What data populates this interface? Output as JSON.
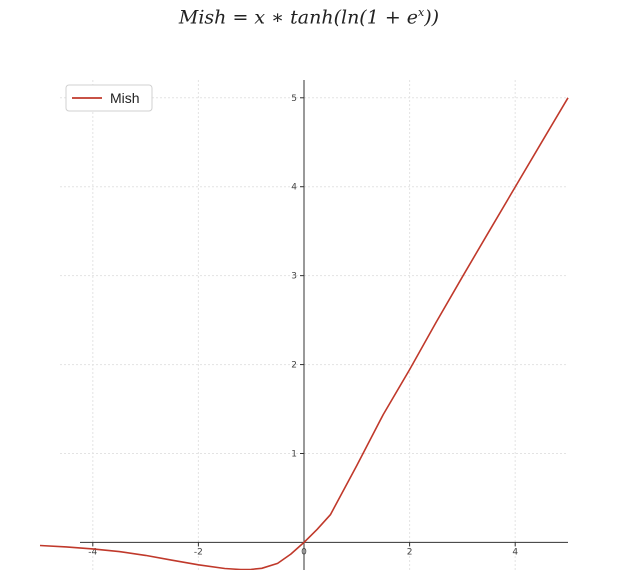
{
  "formula": {
    "lhs": "Mish",
    "rhs_prefix": "= x ∗ tanh(ln(1 + e",
    "exponent": "x",
    "rhs_suffix": "))"
  },
  "chart_data": {
    "type": "line",
    "title": "",
    "xlabel": "",
    "ylabel": "",
    "xlim": [
      -5,
      5
    ],
    "ylim": [
      -0.31,
      5.2
    ],
    "x_ticks": [
      -4,
      -2,
      0,
      2,
      4
    ],
    "x_tick_labels": [
      "-4",
      "-2",
      "0",
      "2",
      "4"
    ],
    "y_ticks": [
      1,
      2,
      3,
      4,
      5
    ],
    "y_tick_labels": [
      "1",
      "2",
      "3",
      "4",
      "5"
    ],
    "grid": true,
    "spines": "centered at origin",
    "legend": {
      "position": "top-left",
      "entries": [
        "Mish"
      ]
    },
    "series": [
      {
        "name": "Mish",
        "color": "#c0392b",
        "x": [
          -5,
          -4.5,
          -4,
          -3.5,
          -3,
          -2.5,
          -2,
          -1.5,
          -1.2,
          -1,
          -0.8,
          -0.5,
          -0.25,
          0,
          0.25,
          0.5,
          1,
          1.5,
          2,
          2.5,
          3,
          3.5,
          4,
          4.5,
          5
        ],
        "y": [
          -0.034,
          -0.05,
          -0.073,
          -0.103,
          -0.146,
          -0.2,
          -0.252,
          -0.293,
          -0.304,
          -0.303,
          -0.291,
          -0.236,
          -0.131,
          0,
          0.148,
          0.312,
          0.865,
          1.437,
          1.944,
          2.473,
          2.987,
          3.493,
          3.997,
          4.499,
          5.0
        ]
      }
    ]
  }
}
